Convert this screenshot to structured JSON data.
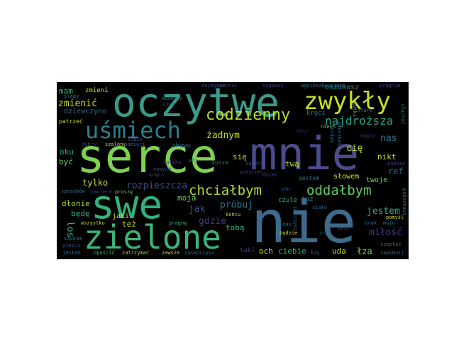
{
  "words": [
    {
      "id": "oczytwe",
      "text": "oczytwe",
      "color": "#3a9a8a"
    },
    {
      "id": "mnie",
      "text": "mnie",
      "color": "#4a4c8c"
    },
    {
      "id": "serce",
      "text": "serce",
      "color": "#7ed152"
    },
    {
      "id": "nie",
      "text": "nie",
      "color": "#3e6b8c"
    },
    {
      "id": "swe",
      "text": "swe",
      "color": "#2fb27d"
    },
    {
      "id": "zielone",
      "text": "zielone",
      "color": "#3bb37a"
    },
    {
      "id": "usmiech",
      "text": "uśmiech",
      "color": "#2c7f8e"
    },
    {
      "id": "zwykly",
      "text": "zwykły",
      "color": "#c8e020"
    },
    {
      "id": "codzienny",
      "text": "codzienny",
      "color": "#b5de2b"
    },
    {
      "id": "chcialbym",
      "text": "chciałbym",
      "color": "#b2dd2d"
    },
    {
      "id": "oddalbym",
      "text": "oddałbym",
      "color": "#5ec962"
    },
    {
      "id": "najdrozsza",
      "text": "najdroższa",
      "color": "#20a386"
    },
    {
      "id": "zmienic",
      "text": "zmienić",
      "color": "#c0df25"
    },
    {
      "id": "mam",
      "text": "mam",
      "color": "#3aba76"
    },
    {
      "id": "zmieni",
      "text": "zmieni",
      "color": "#c2df23"
    },
    {
      "id": "dziewczyno",
      "text": "dziewczyno",
      "color": "#31688e"
    },
    {
      "id": "oszukasz",
      "text": "oszukasz",
      "color": "#26828e"
    },
    {
      "id": "szukasz",
      "text": "szukasz",
      "color": "#3f4889"
    },
    {
      "id": "szeptac",
      "text": "szeptać",
      "color": "#46337e"
    },
    {
      "id": "pragnie",
      "text": "pragnie",
      "color": "#404588"
    },
    {
      "id": "zadnym",
      "text": "żadnym",
      "color": "#c2df23"
    },
    {
      "id": "probuj",
      "text": "próbuj",
      "color": "#2a788e"
    },
    {
      "id": "cie",
      "text": "cię",
      "color": "#b8de29"
    },
    {
      "id": "nas",
      "text": "nas",
      "color": "#2a788e"
    },
    {
      "id": "nikt",
      "text": "nikt",
      "color": "#c0df25"
    },
    {
      "id": "ref",
      "text": "ref",
      "color": "#31688e"
    },
    {
      "id": "sie",
      "text": "się",
      "color": "#bddf26"
    },
    {
      "id": "oku",
      "text": "oku",
      "color": "#23a983"
    },
    {
      "id": "byc",
      "text": "być",
      "color": "#5cc863"
    },
    {
      "id": "tylko",
      "text": "tylko",
      "color": "#c2df23"
    },
    {
      "id": "rozpieszcza",
      "text": "rozpieszcza",
      "color": "#3b528b"
    },
    {
      "id": "dlonie",
      "text": "dłonie",
      "color": "#b2dd2d"
    },
    {
      "id": "bede",
      "text": "będę",
      "color": "#26ad81"
    },
    {
      "id": "los",
      "text": "los",
      "color": "#2fb47c"
    },
    {
      "id": "jaki",
      "text": "jaki",
      "color": "#bddf26"
    },
    {
      "id": "jak",
      "text": "jak",
      "color": "#3b528b"
    },
    {
      "id": "moja",
      "text": "moja",
      "color": "#6ccd5a"
    },
    {
      "id": "tez",
      "text": "też",
      "color": "#c2df23"
    },
    {
      "id": "gdzie",
      "text": "gdzie",
      "color": "#443983"
    },
    {
      "id": "toba",
      "text": "tobą",
      "color": "#35b779"
    },
    {
      "id": "jestem",
      "text": "jestem",
      "color": "#26ad81"
    },
    {
      "id": "milosc",
      "text": "miłość",
      "color": "#453781"
    },
    {
      "id": "och",
      "text": "och",
      "color": "#c2df23"
    },
    {
      "id": "ciebie",
      "text": "ciebie",
      "color": "#2fb47c"
    },
    {
      "id": "uda",
      "text": "uda",
      "color": "#c2df23"
    },
    {
      "id": "lza",
      "text": "łza",
      "color": "#7ad151"
    },
    {
      "id": "twa",
      "text": "twą",
      "color": "#c2df23"
    },
    {
      "id": "slowem",
      "text": "słowem",
      "color": "#c2df23"
    },
    {
      "id": "gestem",
      "text": "gestem",
      "color": "#2e6f8e"
    },
    {
      "id": "juz",
      "text": "już",
      "color": "#2a788e"
    },
    {
      "id": "zhowu",
      "text": "zhowu",
      "color": "#31688e"
    },
    {
      "id": "twoje",
      "text": "twoje",
      "color": "#7ad151"
    },
    {
      "id": "krec",
      "text": "kręci",
      "color": "#2e6f8e"
    },
    {
      "id": "slady",
      "text": "ślady",
      "color": "#26828e"
    },
    {
      "id": "patrzec",
      "text": "patrzeć",
      "color": "#c2df23"
    },
    {
      "id": "dobry",
      "text": "dobry",
      "color": "#443983"
    },
    {
      "id": "szalony",
      "text": "szalony",
      "color": "#c2df23"
    },
    {
      "id": "mochasz",
      "text": "mochasz",
      "color": "#2e6f8e"
    },
    {
      "id": "czas",
      "text": "czas",
      "color": "#3b528b"
    },
    {
      "id": "agnieszkouciena",
      "text": "agnieszkouciena",
      "color": "#2a788e"
    },
    {
      "id": "stare",
      "text": "stare",
      "color": "#2e6f8e"
    },
    {
      "id": "pozna",
      "text": "poznać",
      "color": "#443983"
    },
    {
      "id": "niech",
      "text": "niech",
      "color": "#7ad151"
    },
    {
      "id": "dusz",
      "text": "dusz",
      "color": "#481f70"
    },
    {
      "id": "dawno",
      "text": "dawno",
      "color": "#46337e"
    },
    {
      "id": "ktos",
      "text": "kotki",
      "color": "#35b779"
    },
    {
      "id": "dusza",
      "text": "dusza",
      "color": "#2a788e"
    },
    {
      "id": "nowych",
      "text": "nowych",
      "color": "#3b528b"
    },
    {
      "id": "daleko",
      "text": "daleko",
      "color": "#443983"
    },
    {
      "id": "mysle",
      "text": "mój",
      "color": "#31688e"
    },
    {
      "id": "pamieci",
      "text": "pamięci",
      "color": "#3b528b"
    },
    {
      "id": "sposobow",
      "text": "sposobów",
      "color": "#2a788e"
    },
    {
      "id": "zaciera",
      "text": "zaciera",
      "color": "#3b528b"
    },
    {
      "id": "proszesz",
      "text": "proszę",
      "color": "#7ad151"
    },
    {
      "id": "kreci",
      "text": "kręci",
      "color": "#3b528b"
    },
    {
      "id": "wszystko",
      "text": "wszystko",
      "color": "#c2df23"
    },
    {
      "id": "pragne",
      "text": "pragnę",
      "color": "#35b779"
    },
    {
      "id": "konca",
      "text": "końcu",
      "color": "#c2df23"
    },
    {
      "id": "czule",
      "text": "czule",
      "color": "#35b779"
    },
    {
      "id": "ciało",
      "text": "ciało",
      "color": "#31688e"
    },
    {
      "id": "nos",
      "text": "nos",
      "color": "#2e6f8e"
    },
    {
      "id": "bedzie",
      "text": "będzie",
      "color": "#c2df23"
    },
    {
      "id": "ich",
      "text": "ich",
      "color": "#2a788e"
    },
    {
      "id": "snic",
      "text": "śnić",
      "color": "#3b528b"
    },
    {
      "id": "brak",
      "text": "brak",
      "color": "#31688e"
    },
    {
      "id": "mojo",
      "text": "mojo",
      "color": "#2a788e"
    },
    {
      "id": "szukam",
      "text": "szukam",
      "color": "#2e6f8e"
    },
    {
      "id": "opuscic",
      "text": "opuścić",
      "color": "#35b779"
    },
    {
      "id": "zatrzymac",
      "text": "zatrzymać",
      "color": "#c2df23"
    },
    {
      "id": "zawsze",
      "text": "zawsze",
      "color": "#c2df23"
    },
    {
      "id": "zaskoczysz",
      "text": "zaskoczysz",
      "color": "#2e6f8e"
    },
    {
      "id": "taki",
      "text": "taki",
      "color": "#46337e"
    },
    {
      "id": "lzy",
      "text": "łzy",
      "color": "#31688e"
    },
    {
      "id": "szeptaz",
      "text": "szeptać",
      "color": "#2a788e"
    },
    {
      "id": "zapomnij",
      "text": "zapomnij",
      "color": "#2e6f8e"
    },
    {
      "id": "jestes",
      "text": "jesteś",
      "color": "#2a788e"
    },
    {
      "id": "piesci",
      "text": "pieści",
      "color": "#3b528b"
    },
    {
      "id": "pokochasz",
      "text": "pokochasz",
      "color": "#2a788e"
    },
    {
      "id": "pomysl",
      "text": "pomyśl",
      "color": "#c2df23"
    },
    {
      "id": "dzien",
      "text": "dzień",
      "color": "#3b528b"
    },
    {
      "id": "odo",
      "text": "odo",
      "color": "#3b528b"
    },
    {
      "id": "tobie",
      "text": "tobie",
      "color": "#3b528b"
    },
    {
      "id": "sniegiem",
      "text": "śniegiem",
      "color": "#3b528b"
    },
    {
      "id": "mieszkasz",
      "text": "mieszkasz",
      "color": "#2e6f8e"
    },
    {
      "id": "kazdym",
      "text": "każdym",
      "color": "#2e6f8e"
    },
    {
      "id": "wzdychac",
      "text": "wzdychać",
      "color": "#443983"
    },
    {
      "id": "sluchac",
      "text": "słuchać",
      "color": "#2a788e"
    },
    {
      "id": "patrzysz",
      "text": "patrzysz",
      "color": "#2e6f8e"
    },
    {
      "id": "zacznij",
      "text": "zacznij",
      "color": "#3b528b"
    }
  ]
}
